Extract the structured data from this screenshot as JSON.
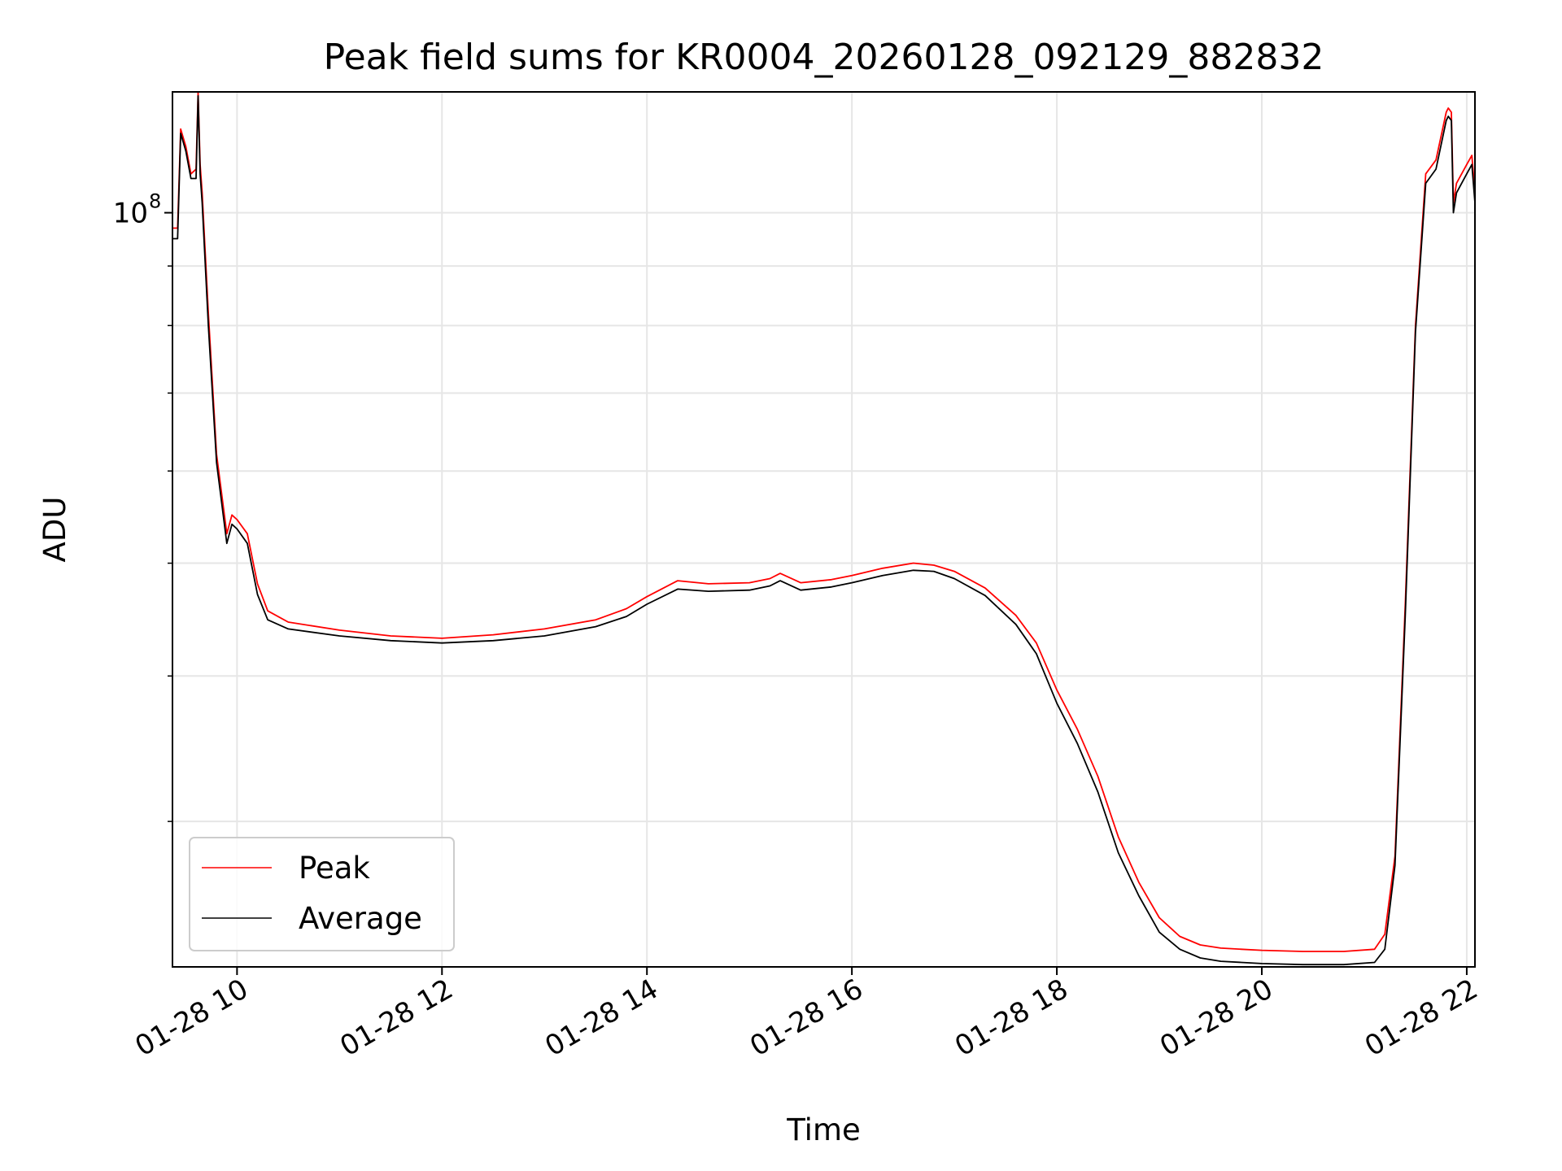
{
  "chart_data": {
    "type": "line",
    "title": "Peak field sums for KR0004_20260128_092129_882832",
    "xlabel": "Time",
    "ylabel": "ADU",
    "x_unit": "hour of 2026-01-28",
    "xlim": [
      9.37,
      22.08
    ],
    "y_scale": "log",
    "ylim": [
      22500000.0,
      127000000.0
    ],
    "x_ticks": [
      10,
      12,
      14,
      16,
      18,
      20,
      22
    ],
    "x_tick_labels": [
      "01-28 10",
      "01-28 12",
      "01-28 14",
      "01-28 16",
      "01-28 18",
      "01-28 20",
      "01-28 22"
    ],
    "y_tick_label_base": "10",
    "y_tick_label_exponent": "8",
    "grid": true,
    "legend_position": "lower-left",
    "colors": {
      "peak": "#ff0000",
      "average": "#000000",
      "grid": "#e6e6e6"
    },
    "series": [
      {
        "name": "Peak",
        "x": [
          9.37,
          9.42,
          9.45,
          9.5,
          9.55,
          9.6,
          9.62,
          9.64,
          9.66,
          9.72,
          9.8,
          9.9,
          9.95,
          10.0,
          10.1,
          10.2,
          10.3,
          10.5,
          11.0,
          11.5,
          12.0,
          12.5,
          13.0,
          13.5,
          13.8,
          14.0,
          14.3,
          14.6,
          15.0,
          15.2,
          15.3,
          15.5,
          15.8,
          16.0,
          16.3,
          16.6,
          16.8,
          17.0,
          17.3,
          17.6,
          17.8,
          18.0,
          18.2,
          18.4,
          18.6,
          18.8,
          19.0,
          19.2,
          19.4,
          19.6,
          19.8,
          20.0,
          20.4,
          20.8,
          21.1,
          21.2,
          21.3,
          21.4,
          21.5,
          21.6,
          21.7,
          21.8,
          21.82,
          21.85,
          21.87,
          21.9,
          22.0,
          22.05,
          22.08
        ],
        "values": [
          97000000,
          97000000,
          118000000,
          114000000,
          108000000,
          109000000,
          127000000,
          110000000,
          104000000,
          82000000,
          62000000,
          53000000,
          55000000,
          54500000,
          53000000,
          48000000,
          45500000,
          44500000,
          43800000,
          43300000,
          43100000,
          43400000,
          43900000,
          44700000,
          45700000,
          46800000,
          48300000,
          48000000,
          48100000,
          48500000,
          49000000,
          48100000,
          48400000,
          48800000,
          49500000,
          50000000,
          49800000,
          49200000,
          47600000,
          45100000,
          42700000,
          38900000,
          36000000,
          32800000,
          29100000,
          26600000,
          24800000,
          23900000,
          23500000,
          23350000,
          23300000,
          23250000,
          23200000,
          23200000,
          23300000,
          24000000,
          28000000,
          46000000,
          80000000,
          108000000,
          111000000,
          122000000,
          123000000,
          122000000,
          102000000,
          106000000,
          110000000,
          112000000,
          104000000
        ]
      },
      {
        "name": "Average",
        "x": [
          9.37,
          9.42,
          9.45,
          9.5,
          9.55,
          9.6,
          9.62,
          9.64,
          9.66,
          9.72,
          9.8,
          9.9,
          9.95,
          10.0,
          10.1,
          10.2,
          10.3,
          10.5,
          11.0,
          11.5,
          12.0,
          12.5,
          13.0,
          13.5,
          13.8,
          14.0,
          14.3,
          14.6,
          15.0,
          15.2,
          15.3,
          15.5,
          15.8,
          16.0,
          16.3,
          16.6,
          16.8,
          17.0,
          17.3,
          17.6,
          17.8,
          18.0,
          18.2,
          18.4,
          18.6,
          18.8,
          19.0,
          19.2,
          19.4,
          19.6,
          19.8,
          20.0,
          20.4,
          20.8,
          21.1,
          21.2,
          21.3,
          21.4,
          21.5,
          21.6,
          21.7,
          21.8,
          21.82,
          21.85,
          21.87,
          21.9,
          22.0,
          22.05,
          22.08
        ],
        "values": [
          95000000,
          95000000,
          117000000,
          113000000,
          107000000,
          107000000,
          126000000,
          108000000,
          102000000,
          80000000,
          61000000,
          52000000,
          54000000,
          53500000,
          52000000,
          47000000,
          44700000,
          43900000,
          43300000,
          42900000,
          42700000,
          42900000,
          43300000,
          44100000,
          45000000,
          46100000,
          47500000,
          47300000,
          47400000,
          47800000,
          48300000,
          47400000,
          47700000,
          48100000,
          48800000,
          49300000,
          49200000,
          48500000,
          46900000,
          44300000,
          41800000,
          37900000,
          35000000,
          31800000,
          28200000,
          25900000,
          24100000,
          23300000,
          22900000,
          22750000,
          22700000,
          22650000,
          22600000,
          22600000,
          22700000,
          23300000,
          27500000,
          45000000,
          79000000,
          106000000,
          109000000,
          120000000,
          121000000,
          120000000,
          100000000,
          104000000,
          108000000,
          110000000,
          102000000
        ]
      }
    ]
  }
}
